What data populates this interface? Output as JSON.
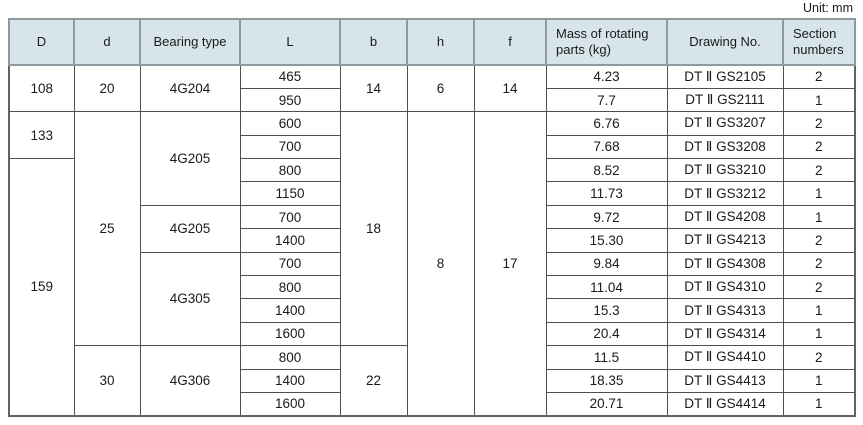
{
  "unit_label": "Unit: mm",
  "colors": {
    "header_bg": "#d7e5eb",
    "header_border": "#8e9aa0",
    "body_border": "#4f4f4f",
    "text": "#1a1a1a"
  },
  "table": {
    "columns": [
      {
        "key": "D",
        "label": "D"
      },
      {
        "key": "d",
        "label": "d"
      },
      {
        "key": "bearing_type",
        "label": "Bearing type"
      },
      {
        "key": "L",
        "label": "L"
      },
      {
        "key": "b",
        "label": "b"
      },
      {
        "key": "h",
        "label": "h"
      },
      {
        "key": "f",
        "label": "f"
      },
      {
        "key": "mass",
        "label": "Mass of rotating parts (kg)",
        "align": "left"
      },
      {
        "key": "drawing",
        "label": "Drawing No."
      },
      {
        "key": "section",
        "label": "Section numbers",
        "align": "left"
      }
    ],
    "rows": [
      [
        {
          "col": "D",
          "v": "108",
          "span": 2
        },
        {
          "col": "d",
          "v": "20",
          "span": 2
        },
        {
          "col": "bearing_type",
          "v": "4G204",
          "span": 2
        },
        {
          "col": "L",
          "v": "465"
        },
        {
          "col": "b",
          "v": "14",
          "span": 2
        },
        {
          "col": "h",
          "v": "6",
          "span": 2
        },
        {
          "col": "f",
          "v": "14",
          "span": 2
        },
        {
          "col": "mass",
          "v": "4.23"
        },
        {
          "col": "drawing",
          "v": "DT Ⅱ GS2105"
        },
        {
          "col": "section",
          "v": "2"
        }
      ],
      [
        {
          "col": "L",
          "v": "950"
        },
        {
          "col": "mass",
          "v": "7.7"
        },
        {
          "col": "drawing",
          "v": "DT Ⅱ GS2111"
        },
        {
          "col": "section",
          "v": "1"
        }
      ],
      [
        {
          "col": "D",
          "v": "133",
          "span": 2
        },
        {
          "col": "d",
          "v": "25",
          "span": 10
        },
        {
          "col": "bearing_type",
          "v": "4G205",
          "span": 4
        },
        {
          "col": "L",
          "v": "600"
        },
        {
          "col": "b",
          "v": "18",
          "span": 10
        },
        {
          "col": "h",
          "v": "8",
          "span": 13
        },
        {
          "col": "f",
          "v": "17",
          "span": 13
        },
        {
          "col": "mass",
          "v": "6.76"
        },
        {
          "col": "drawing",
          "v": "DT Ⅱ GS3207"
        },
        {
          "col": "section",
          "v": "2"
        }
      ],
      [
        {
          "col": "L",
          "v": "700"
        },
        {
          "col": "mass",
          "v": "7.68"
        },
        {
          "col": "drawing",
          "v": "DT Ⅱ GS3208"
        },
        {
          "col": "section",
          "v": "2"
        }
      ],
      [
        {
          "col": "D",
          "v": "159",
          "span": 11
        },
        {
          "col": "L",
          "v": "800"
        },
        {
          "col": "mass",
          "v": "8.52"
        },
        {
          "col": "drawing",
          "v": "DT Ⅱ GS3210"
        },
        {
          "col": "section",
          "v": "2"
        }
      ],
      [
        {
          "col": "L",
          "v": "1150"
        },
        {
          "col": "mass",
          "v": "11.73"
        },
        {
          "col": "drawing",
          "v": "DT Ⅱ GS3212"
        },
        {
          "col": "section",
          "v": "1"
        }
      ],
      [
        {
          "col": "bearing_type",
          "v": "4G205",
          "span": 2
        },
        {
          "col": "L",
          "v": "700"
        },
        {
          "col": "mass",
          "v": "9.72"
        },
        {
          "col": "drawing",
          "v": "DT Ⅱ GS4208"
        },
        {
          "col": "section",
          "v": "1"
        }
      ],
      [
        {
          "col": "L",
          "v": "1400"
        },
        {
          "col": "mass",
          "v": "15.30"
        },
        {
          "col": "drawing",
          "v": "DT Ⅱ GS4213"
        },
        {
          "col": "section",
          "v": "2"
        }
      ],
      [
        {
          "col": "bearing_type",
          "v": "4G305",
          "span": 4
        },
        {
          "col": "L",
          "v": "700"
        },
        {
          "col": "mass",
          "v": "9.84"
        },
        {
          "col": "drawing",
          "v": "DT Ⅱ GS4308"
        },
        {
          "col": "section",
          "v": "2"
        }
      ],
      [
        {
          "col": "L",
          "v": "800"
        },
        {
          "col": "mass",
          "v": "11.04"
        },
        {
          "col": "drawing",
          "v": "DT Ⅱ GS4310"
        },
        {
          "col": "section",
          "v": "2"
        }
      ],
      [
        {
          "col": "L",
          "v": "1400"
        },
        {
          "col": "mass",
          "v": "15.3"
        },
        {
          "col": "drawing",
          "v": "DT Ⅱ GS4313"
        },
        {
          "col": "section",
          "v": "1"
        }
      ],
      [
        {
          "col": "L",
          "v": "1600"
        },
        {
          "col": "mass",
          "v": "20.4"
        },
        {
          "col": "drawing",
          "v": "DT Ⅱ GS4314"
        },
        {
          "col": "section",
          "v": "1"
        }
      ],
      [
        {
          "col": "d",
          "v": "30",
          "span": 3
        },
        {
          "col": "bearing_type",
          "v": "4G306",
          "span": 3
        },
        {
          "col": "L",
          "v": "800"
        },
        {
          "col": "b",
          "v": "22",
          "span": 3
        },
        {
          "col": "mass",
          "v": "11.5"
        },
        {
          "col": "drawing",
          "v": "DT Ⅱ GS4410"
        },
        {
          "col": "section",
          "v": "2"
        }
      ],
      [
        {
          "col": "L",
          "v": "1400"
        },
        {
          "col": "mass",
          "v": "18.35"
        },
        {
          "col": "drawing",
          "v": "DT Ⅱ GS4413"
        },
        {
          "col": "section",
          "v": "1"
        }
      ],
      [
        {
          "col": "L",
          "v": "1600"
        },
        {
          "col": "mass",
          "v": "20.71"
        },
        {
          "col": "drawing",
          "v": "DT Ⅱ GS4414"
        },
        {
          "col": "section",
          "v": "1"
        }
      ]
    ]
  }
}
